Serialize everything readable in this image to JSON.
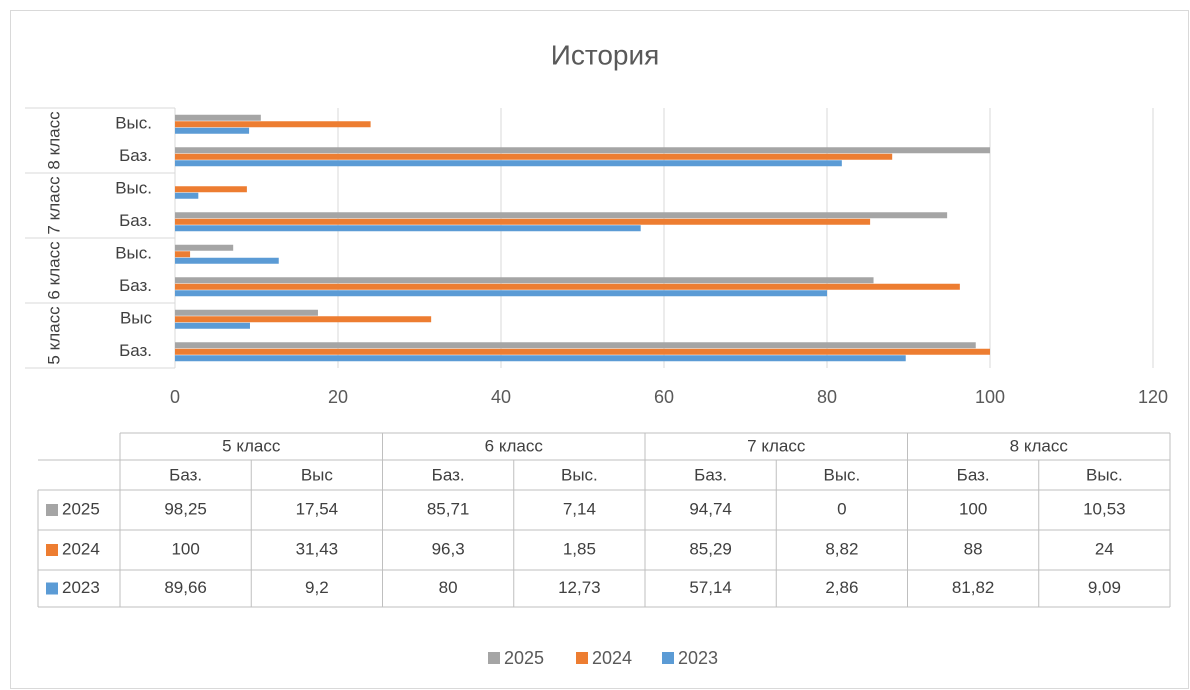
{
  "chart_data": {
    "type": "bar",
    "orientation": "horizontal",
    "title": "История",
    "groups": [
      "5 класс",
      "6 класс",
      "7 класс",
      "8 класс"
    ],
    "categories": [
      "Баз.",
      "Выс",
      "Баз.",
      "Выс.",
      "Баз.",
      "Выс.",
      "Баз.",
      "Выс."
    ],
    "series": [
      {
        "name": "2025",
        "color": "#a5a5a5",
        "values": [
          98.25,
          17.54,
          85.71,
          7.14,
          94.74,
          0,
          100,
          10.53
        ],
        "value_labels": [
          "98,25",
          "17,54",
          "85,71",
          "7,14",
          "94,74",
          "0",
          "100",
          "10,53"
        ]
      },
      {
        "name": "2024",
        "color": "#ed7d31",
        "values": [
          100,
          31.43,
          96.3,
          1.85,
          85.29,
          8.82,
          88,
          24
        ],
        "value_labels": [
          "100",
          "31,43",
          "96,3",
          "1,85",
          "85,29",
          "8,82",
          "88",
          "24"
        ]
      },
      {
        "name": "2023",
        "color": "#5b9bd5",
        "values": [
          89.66,
          9.2,
          80,
          12.73,
          57.14,
          2.86,
          81.82,
          9.09
        ],
        "value_labels": [
          "89,66",
          "9,2",
          "80",
          "12,73",
          "57,14",
          "2,86",
          "81,82",
          "9,09"
        ]
      }
    ],
    "xlim": [
      0,
      120
    ],
    "xticks": [
      0,
      20,
      40,
      60,
      80,
      100,
      120
    ],
    "grid": true,
    "legend": "bottom"
  }
}
